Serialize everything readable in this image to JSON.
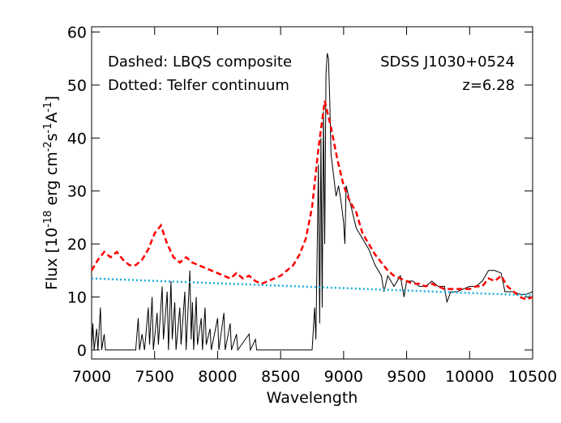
{
  "chart_data": {
    "type": "line",
    "xlabel": "Wavelength",
    "ylabel": [
      "Flux [10",
      "-18",
      " erg cm",
      "-2",
      "s",
      "-1",
      "A",
      "-1",
      "]"
    ],
    "annotations": [
      "Dashed: LBQS composite",
      "Dotted: Telfer continuum",
      "SDSS J1030+0524",
      "z=6.28"
    ],
    "xlim": [
      7000,
      10500
    ],
    "ylim": [
      -1.7,
      61
    ],
    "xticks": [
      7000,
      7500,
      8000,
      8500,
      9000,
      9500,
      10000,
      10500
    ],
    "yticks": [
      0,
      10,
      20,
      30,
      40,
      50,
      60
    ],
    "series": [
      {
        "color": "#000000",
        "dash": "solid",
        "width": 1,
        "x": [
          7000,
          7010,
          7020,
          7040,
          7050,
          7070,
          7080,
          7100,
          7110,
          7150,
          7200,
          7300,
          7350,
          7370,
          7380,
          7400,
          7420,
          7450,
          7460,
          7480,
          7490,
          7520,
          7530,
          7560,
          7570,
          7600,
          7610,
          7630,
          7640,
          7660,
          7670,
          7700,
          7710,
          7740,
          7750,
          7780,
          7790,
          7800,
          7810,
          7830,
          7840,
          7870,
          7880,
          7900,
          7910,
          7940,
          7950,
          8000,
          8010,
          8050,
          8060,
          8100,
          8110,
          8150,
          8160,
          8250,
          8260,
          8300,
          8310,
          8750,
          8770,
          8780,
          8800,
          8810,
          8820,
          8830,
          8840,
          8850,
          8860,
          8870,
          8880,
          8890,
          8900,
          8920,
          8940,
          8960,
          8980,
          9000,
          9010,
          9020,
          9040,
          9060,
          9100,
          9150,
          9200,
          9250,
          9300,
          9320,
          9350,
          9400,
          9450,
          9480,
          9500,
          9550,
          9600,
          9650,
          9700,
          9750,
          9800,
          9820,
          9850,
          9900,
          9950,
          10000,
          10050,
          10100,
          10150,
          10200,
          10250,
          10280,
          10300,
          10350,
          10400,
          10450,
          10500
        ],
        "values": [
          0,
          5,
          0,
          4,
          0,
          8,
          0,
          3,
          0,
          0,
          0,
          0,
          0,
          6,
          0,
          3,
          0,
          8,
          1,
          10,
          0,
          7,
          1,
          12,
          2,
          11,
          0,
          13,
          2,
          9,
          0,
          8,
          1,
          11,
          0,
          15,
          2,
          9,
          0,
          10,
          1,
          6,
          0,
          8,
          1,
          4,
          0,
          6,
          0,
          7,
          0,
          5,
          0,
          3,
          0,
          3,
          0,
          2,
          0,
          0,
          8,
          2,
          35,
          5,
          40,
          8,
          45,
          20,
          52,
          56,
          55,
          47,
          37,
          33,
          29,
          31,
          28,
          24,
          20,
          31,
          29,
          27,
          23,
          21,
          19,
          16,
          14,
          11,
          14,
          12,
          14,
          10,
          13,
          13,
          12,
          12,
          13,
          12,
          12,
          9,
          11,
          11,
          11.5,
          12,
          12,
          13,
          15,
          15,
          14.5,
          11,
          11,
          11,
          10.5,
          10.5,
          11
        ]
      },
      {
        "color": "#ff0000",
        "dash": "dashed",
        "width": 2.5,
        "x": [
          7000,
          7050,
          7100,
          7150,
          7200,
          7250,
          7300,
          7350,
          7400,
          7450,
          7500,
          7550,
          7600,
          7650,
          7700,
          7750,
          7800,
          7850,
          7900,
          7950,
          8000,
          8050,
          8100,
          8150,
          8200,
          8250,
          8300,
          8350,
          8400,
          8450,
          8500,
          8550,
          8600,
          8650,
          8700,
          8750,
          8800,
          8850,
          8900,
          8950,
          9000,
          9050,
          9100,
          9150,
          9200,
          9250,
          9300,
          9350,
          9400,
          9450,
          9500,
          9550,
          9600,
          9650,
          9700,
          9750,
          9800,
          9850,
          9900,
          9950,
          10000,
          10050,
          10100,
          10150,
          10200,
          10250,
          10300,
          10350,
          10400,
          10450,
          10500
        ],
        "values": [
          15,
          17,
          18.5,
          17.5,
          18.5,
          17,
          16,
          16,
          17,
          19,
          22,
          23.5,
          20,
          17.5,
          16.5,
          17.5,
          16.5,
          16,
          15.5,
          15,
          14.5,
          14,
          13.5,
          14.5,
          13.5,
          14,
          13,
          12.5,
          13,
          13.5,
          14,
          15,
          16,
          18,
          21,
          27,
          38,
          47,
          42,
          36,
          31,
          28,
          26,
          22,
          20,
          18,
          16.5,
          15,
          14,
          13.5,
          13,
          12.5,
          12.5,
          12,
          12.5,
          12,
          11.5,
          11.5,
          11.5,
          11.5,
          11.5,
          12,
          12,
          13.5,
          13,
          14,
          12,
          11,
          10,
          9.5,
          10
        ]
      },
      {
        "color": "#1ab0e0",
        "dash": "dotted",
        "width": 2.5,
        "x": [
          7000,
          10500
        ],
        "values": [
          13.5,
          10.3
        ]
      }
    ]
  }
}
